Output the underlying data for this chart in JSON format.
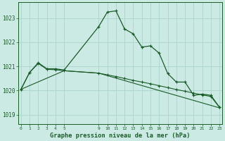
{
  "bg_color": "#cceae4",
  "grid_color": "#aad4cc",
  "line_color": "#1a5c28",
  "title": "Graphe pression niveau de la mer (hPa)",
  "title_color": "#1a5c28",
  "ylim": [
    1018.6,
    1023.65
  ],
  "yticks": [
    1019,
    1020,
    1021,
    1022,
    1023
  ],
  "xlim": [
    -0.3,
    23.3
  ],
  "xtick_positions": [
    0,
    1,
    2,
    3,
    4,
    5,
    9,
    10,
    11,
    12,
    13,
    14,
    15,
    16,
    17,
    18,
    19,
    20,
    21,
    22,
    23
  ],
  "xtick_labels": [
    "0",
    "1",
    "2",
    "3",
    "4",
    "5",
    "9",
    "10",
    "11",
    "12",
    "13",
    "14",
    "15",
    "16",
    "17",
    "18",
    "19",
    "20",
    "21",
    "22",
    "23"
  ],
  "line1_x": [
    0,
    1,
    2,
    3,
    4,
    5,
    9,
    10,
    11,
    12,
    13,
    14,
    15,
    16,
    17,
    18,
    19,
    20,
    21,
    22,
    23
  ],
  "line1_y": [
    1020.05,
    1020.75,
    1021.15,
    1020.9,
    1020.9,
    1020.85,
    1022.65,
    1023.25,
    1023.3,
    1022.55,
    1022.35,
    1021.8,
    1021.85,
    1021.55,
    1020.7,
    1020.35,
    1020.35,
    1019.8,
    1019.85,
    1019.8,
    1019.3
  ],
  "line2_x": [
    0,
    1,
    2,
    3,
    4,
    5,
    9,
    10,
    11,
    12,
    13,
    14,
    15,
    16,
    17,
    18,
    19,
    20,
    21,
    22,
    23
  ],
  "line2_y": [
    1020.05,
    1020.75,
    1021.12,
    1020.88,
    1020.86,
    1020.82,
    1020.72,
    1020.65,
    1020.58,
    1020.5,
    1020.42,
    1020.35,
    1020.28,
    1020.2,
    1020.12,
    1020.04,
    1019.97,
    1019.89,
    1019.82,
    1019.75,
    1019.3
  ],
  "line3_x": [
    0,
    5,
    9,
    23
  ],
  "line3_y": [
    1020.05,
    1020.82,
    1020.72,
    1019.28
  ]
}
